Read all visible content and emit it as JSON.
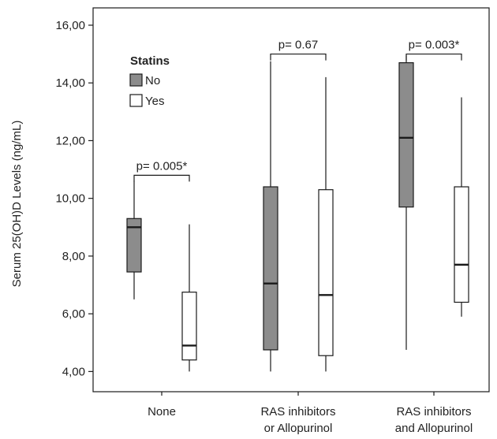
{
  "chart_data": {
    "type": "box",
    "title": "",
    "xlabel": "",
    "ylabel": "Serum 25(OH)D Levels (ng/mL)",
    "ylim": [
      3.3,
      16.6
    ],
    "yticks": [
      "4,00",
      "6,00",
      "8,00",
      "10,00",
      "12,00",
      "14,00",
      "16,00"
    ],
    "ytick_values": [
      4,
      6,
      8,
      10,
      12,
      14,
      16
    ],
    "categories": [
      [
        "None"
      ],
      [
        "RAS inhibitors",
        "or Allopurinol"
      ],
      [
        "RAS inhibitors",
        "and Allopurinol"
      ]
    ],
    "legend": {
      "title": "Statins",
      "placement": "top-left",
      "entries": [
        "No",
        "Yes"
      ]
    },
    "colors": {
      "No": "#8c8c8c",
      "Yes": "#ffffff",
      "stroke": "#1a1a1a"
    },
    "series": [
      {
        "name": "No",
        "boxes": [
          {
            "min": 6.5,
            "q1": 7.45,
            "median": 9.0,
            "q3": 9.3,
            "max": 10.6
          },
          {
            "min": 4.0,
            "q1": 4.75,
            "median": 7.05,
            "q3": 10.4,
            "max": 14.75
          },
          {
            "min": 4.75,
            "q1": 9.7,
            "median": 12.1,
            "q3": 14.7,
            "max": 14.95
          }
        ]
      },
      {
        "name": "Yes",
        "boxes": [
          {
            "min": 4.0,
            "q1": 4.4,
            "median": 4.9,
            "q3": 6.75,
            "max": 9.1
          },
          {
            "min": 4.0,
            "q1": 4.55,
            "median": 6.65,
            "q3": 10.3,
            "max": 14.2
          },
          {
            "min": 5.9,
            "q1": 6.4,
            "median": 7.7,
            "q3": 10.4,
            "max": 13.5
          }
        ]
      }
    ],
    "annotations": [
      {
        "text": "p= 0.005*",
        "category": 0,
        "y": 10.8
      },
      {
        "text": "p= 0.67",
        "category": 1,
        "y": 15.0
      },
      {
        "text": "p= 0.003*",
        "category": 2,
        "y": 15.0
      }
    ]
  }
}
